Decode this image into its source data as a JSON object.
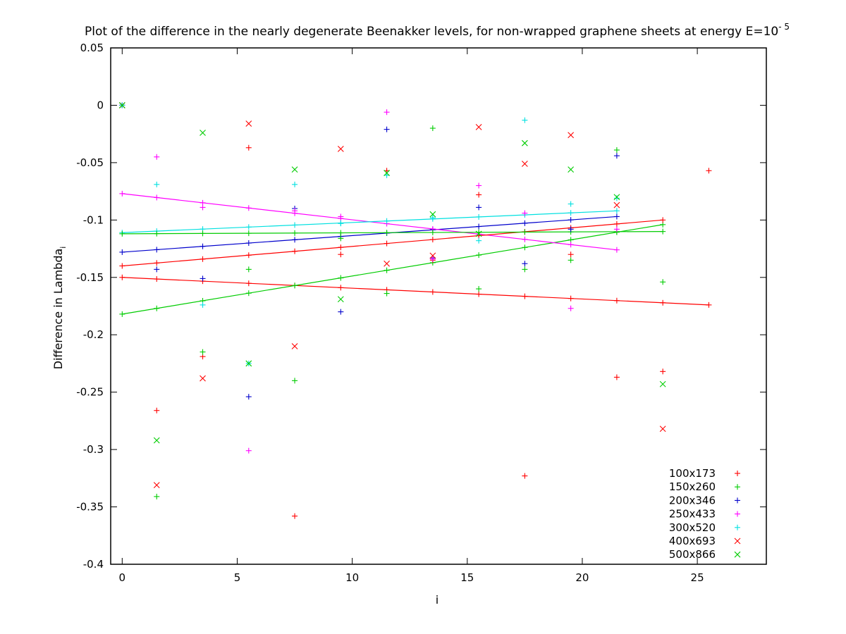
{
  "chart_data": {
    "type": "scatter",
    "title_main": "Plot of the difference in the nearly degenerate Beenakker levels, for non-wrapped graphene sheets at energy E=10",
    "title_sup": "- 5",
    "xlabel": "i",
    "ylabel_main": "Difference in Lambda",
    "ylabel_sub": "i",
    "xlim": [
      -0.5,
      28
    ],
    "ylim": [
      -0.4,
      0.05
    ],
    "xticks": [
      0,
      5,
      10,
      15,
      20,
      25
    ],
    "yticks": [
      0.05,
      0,
      -0.05,
      -0.1,
      -0.15,
      -0.2,
      -0.25,
      -0.3,
      -0.35,
      -0.4
    ],
    "ytick_labels": [
      "0.05",
      "0",
      "-0.05",
      "-0.1",
      "-0.15",
      "-0.2",
      "-0.25",
      "-0.3",
      "-0.35",
      "-0.4"
    ],
    "legend_position": "bottom-right",
    "series": [
      {
        "name": "100x173",
        "color": "#ff0000",
        "marker": "plus",
        "points": [
          [
            0,
            0
          ],
          [
            1.5,
            -0.266
          ],
          [
            3.5,
            -0.219
          ],
          [
            5.5,
            -0.037
          ],
          [
            7.5,
            -0.358
          ],
          [
            9.5,
            -0.13
          ],
          [
            11.5,
            -0.057
          ],
          [
            13.5,
            -0.135
          ],
          [
            15.5,
            -0.078
          ],
          [
            17.5,
            -0.323
          ],
          [
            19.5,
            -0.13
          ],
          [
            21.5,
            -0.237
          ],
          [
            23.5,
            -0.232
          ],
          [
            25.5,
            -0.057
          ]
        ],
        "fit": [
          [
            0,
            -0.15
          ],
          [
            25.5,
            -0.174
          ]
        ]
      },
      {
        "name": "150x260",
        "color": "#00cc00",
        "marker": "plus",
        "points": [
          [
            0,
            0
          ],
          [
            1.5,
            -0.341
          ],
          [
            3.5,
            -0.215
          ],
          [
            5.5,
            -0.143
          ],
          [
            7.5,
            -0.24
          ],
          [
            9.5,
            -0.116
          ],
          [
            11.5,
            -0.164
          ],
          [
            13.5,
            -0.02
          ],
          [
            15.5,
            -0.16
          ],
          [
            17.5,
            -0.143
          ],
          [
            19.5,
            -0.135
          ],
          [
            21.5,
            -0.039
          ],
          [
            23.5,
            -0.154
          ]
        ],
        "fit": [
          [
            0,
            -0.182
          ],
          [
            23.5,
            -0.104
          ]
        ]
      },
      {
        "name": "200x346",
        "color": "#0000cc",
        "marker": "plus",
        "points": [
          [
            0,
            0
          ],
          [
            1.5,
            -0.143
          ],
          [
            3.5,
            -0.151
          ],
          [
            5.5,
            -0.254
          ],
          [
            7.5,
            -0.09
          ],
          [
            9.5,
            -0.18
          ],
          [
            11.5,
            -0.021
          ],
          [
            13.5,
            -0.133
          ],
          [
            15.5,
            -0.089
          ],
          [
            17.5,
            -0.138
          ],
          [
            19.5,
            -0.108
          ],
          [
            21.5,
            -0.044
          ]
        ],
        "fit": [
          [
            0,
            -0.128
          ],
          [
            21.5,
            -0.097
          ]
        ]
      },
      {
        "name": "250x433",
        "color": "#ff00ff",
        "marker": "plus",
        "points": [
          [
            0,
            0
          ],
          [
            1.5,
            -0.045
          ],
          [
            3.5,
            -0.089
          ],
          [
            5.5,
            -0.301
          ],
          [
            7.5,
            -0.092
          ],
          [
            9.5,
            -0.097
          ],
          [
            11.5,
            -0.006
          ],
          [
            13.5,
            -0.134
          ],
          [
            15.5,
            -0.07
          ],
          [
            17.5,
            -0.094
          ],
          [
            19.5,
            -0.177
          ],
          [
            21.5,
            -0.108
          ]
        ],
        "fit": [
          [
            0,
            -0.077
          ],
          [
            21.5,
            -0.126
          ]
        ]
      },
      {
        "name": "300x520",
        "color": "#00e0e0",
        "marker": "plus",
        "points": [
          [
            0,
            0
          ],
          [
            1.5,
            -0.069
          ],
          [
            3.5,
            -0.174
          ],
          [
            5.5,
            -0.225
          ],
          [
            7.5,
            -0.069
          ],
          [
            9.5,
            -0.103
          ],
          [
            11.5,
            -0.061
          ],
          [
            13.5,
            -0.098
          ],
          [
            15.5,
            -0.118
          ],
          [
            17.5,
            -0.013
          ],
          [
            19.5,
            -0.086
          ],
          [
            21.5,
            -0.081
          ]
        ],
        "fit": [
          [
            0,
            -0.111
          ],
          [
            21.5,
            -0.092
          ]
        ]
      },
      {
        "name": "400x693",
        "color": "#ff0000",
        "marker": "cross",
        "points": [
          [
            0,
            0
          ],
          [
            1.5,
            -0.331
          ],
          [
            3.5,
            -0.238
          ],
          [
            5.5,
            -0.016
          ],
          [
            7.5,
            -0.21
          ],
          [
            9.5,
            -0.038
          ],
          [
            11.5,
            -0.138
          ],
          [
            13.5,
            -0.131
          ],
          [
            15.5,
            -0.019
          ],
          [
            17.5,
            -0.051
          ],
          [
            19.5,
            -0.026
          ],
          [
            21.5,
            -0.087
          ],
          [
            23.5,
            -0.282
          ]
        ],
        "fit": [
          [
            0,
            -0.14
          ],
          [
            23.5,
            -0.1
          ]
        ]
      },
      {
        "name": "500x866",
        "color": "#00cc00",
        "marker": "cross",
        "points": [
          [
            0,
            0
          ],
          [
            1.5,
            -0.292
          ],
          [
            3.5,
            -0.024
          ],
          [
            5.5,
            -0.225
          ],
          [
            7.5,
            -0.056
          ],
          [
            9.5,
            -0.169
          ],
          [
            11.5,
            -0.059
          ],
          [
            13.5,
            -0.095
          ],
          [
            15.5,
            -0.112
          ],
          [
            17.5,
            -0.033
          ],
          [
            19.5,
            -0.056
          ],
          [
            21.5,
            -0.08
          ],
          [
            23.5,
            -0.243
          ]
        ],
        "fit": [
          [
            0,
            -0.112
          ],
          [
            23.5,
            -0.11
          ]
        ]
      }
    ]
  }
}
